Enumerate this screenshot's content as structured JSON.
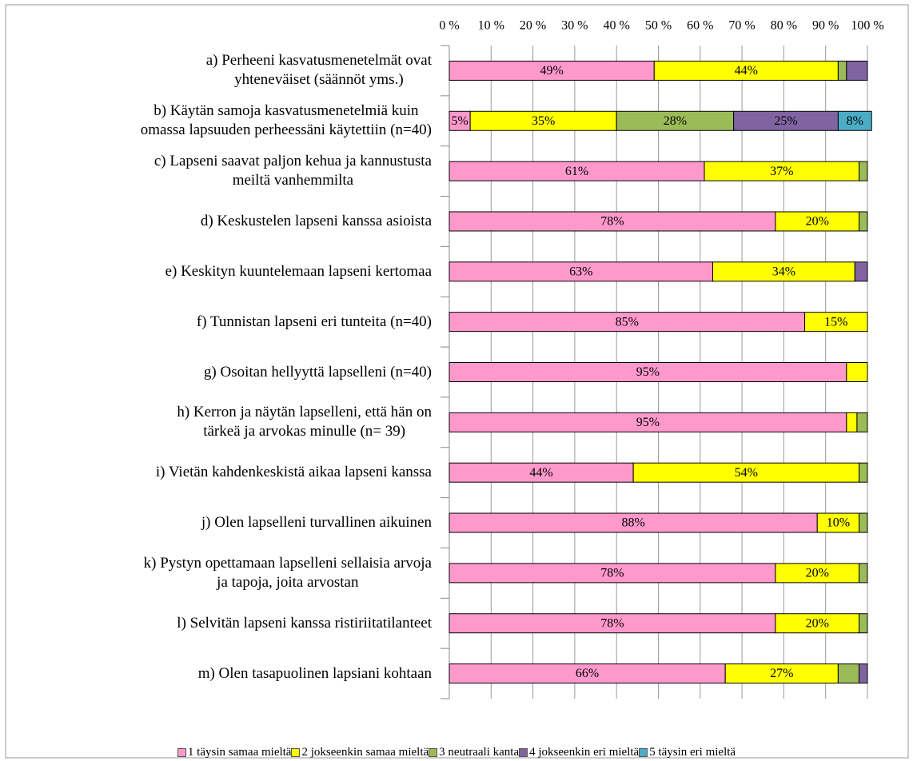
{
  "chart_data": {
    "type": "stacked-bar-horizontal",
    "categories": [
      "a)  Perheeni kasvatusmenetelmät ovat\nyhteneväiset (säännöt yms.)",
      "b)  Käytän samoja kasvatusmenetelmiä kuin\nomassa lapsuuden perheessäni käytettiin (n=40)",
      "c)  Lapseni saavat paljon kehua ja kannustusta\nmeiltä vanhemmilta",
      "d)   Keskustelen lapseni kanssa asioista",
      "e)  Keskityn kuuntelemaan lapseni kertomaa",
      "f)    Tunnistan lapseni eri tunteita (n=40)",
      "g)  Osoitan hellyyttä lapselleni (n=40)",
      "h)  Kerron ja näytän lapselleni, että hän on\ntärkeä ja arvokas minulle (n= 39)",
      "i)  Vietän kahdenkeskistä aikaa lapseni kanssa",
      "j)  Olen lapselleni turvallinen aikuinen",
      "k)  Pystyn opettamaan lapselleni sellaisia arvoja\nja tapoja, joita arvostan",
      "l)  Selvitän lapseni kanssa ristiriitatilanteet",
      "m)   Olen tasapuolinen lapsiani kohtaan"
    ],
    "series": [
      {
        "name": "1 täysin samaa mieltä",
        "color": "#ff99cc",
        "values": [
          49,
          5,
          61,
          78,
          63,
          85,
          95,
          95,
          44,
          88,
          78,
          78,
          66
        ],
        "value_labels": [
          "49%",
          "5%",
          "61%",
          "78%",
          "63%",
          "85%",
          "95%",
          "95%",
          "44%",
          "88%",
          "78%",
          "78%",
          "66%"
        ]
      },
      {
        "name": "2 jokseenkin samaa mieltä",
        "color": "#ffff00",
        "values": [
          44,
          35,
          37,
          20,
          34,
          15,
          5,
          2.5,
          54,
          10,
          20,
          20,
          27
        ],
        "value_labels": [
          "44%",
          "35%",
          "37%",
          "20%",
          "34%",
          "15%",
          null,
          null,
          "54%",
          "10%",
          "20%",
          "20%",
          "27%"
        ]
      },
      {
        "name": "3 neutraali kanta",
        "color": "#9bbb59",
        "values": [
          2,
          28,
          2,
          2,
          0,
          0,
          0,
          2.5,
          2,
          2,
          2,
          2,
          5
        ],
        "value_labels": [
          null,
          "28%",
          null,
          null,
          null,
          null,
          null,
          null,
          null,
          null,
          null,
          null,
          null
        ]
      },
      {
        "name": "4 jokseenkin eri mieltä",
        "color": "#8064a2",
        "values": [
          5,
          25,
          0,
          0,
          3,
          0,
          0,
          0,
          0,
          0,
          0,
          0,
          2
        ],
        "value_labels": [
          null,
          "25%",
          null,
          null,
          null,
          null,
          null,
          null,
          null,
          null,
          null,
          null,
          null
        ]
      },
      {
        "name": "5 täysin eri mieltä",
        "color": "#4bacc6",
        "values": [
          0,
          8,
          0,
          0,
          0,
          0,
          0,
          0,
          0,
          0,
          0,
          0,
          0
        ],
        "value_labels": [
          null,
          "8%",
          null,
          null,
          null,
          null,
          null,
          null,
          null,
          null,
          null,
          null,
          null
        ]
      }
    ],
    "xlim": [
      0,
      100
    ],
    "xticks": [
      {
        "value": 0,
        "label": "0 %"
      },
      {
        "value": 10,
        "label": "10 %"
      },
      {
        "value": 20,
        "label": "20 %"
      },
      {
        "value": 30,
        "label": "30 %"
      },
      {
        "value": 40,
        "label": "40 %"
      },
      {
        "value": 50,
        "label": "50 %"
      },
      {
        "value": 60,
        "label": "60 %"
      },
      {
        "value": 70,
        "label": "70 %"
      },
      {
        "value": 80,
        "label": "80 %"
      },
      {
        "value": 90,
        "label": "90 %"
      },
      {
        "value": 100,
        "label": "100 %"
      }
    ],
    "grid": true,
    "legend": "bottom"
  }
}
